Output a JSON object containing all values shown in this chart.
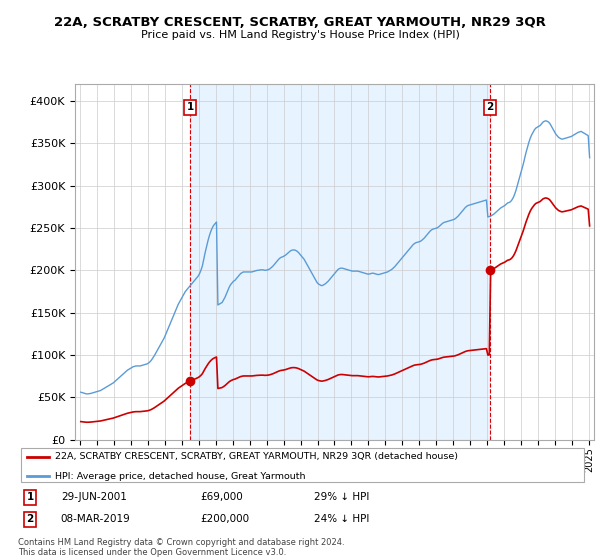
{
  "title": "22A, SCRATBY CRESCENT, SCRATBY, GREAT YARMOUTH, NR29 3QR",
  "subtitle": "Price paid vs. HM Land Registry's House Price Index (HPI)",
  "hpi_color": "#5b9bd5",
  "hpi_fill_color": "#ddeeff",
  "price_color": "#cc0000",
  "dashed_line_color": "#dd0000",
  "sale1_date_x": 2001.49,
  "sale1_price": 69000,
  "sale2_date_x": 2019.18,
  "sale2_price": 200000,
  "legend_line1": "22A, SCRATBY CRESCENT, SCRATBY, GREAT YARMOUTH, NR29 3QR (detached house)",
  "legend_line2": "HPI: Average price, detached house, Great Yarmouth",
  "footer": "Contains HM Land Registry data © Crown copyright and database right 2024.\nThis data is licensed under the Open Government Licence v3.0.",
  "ylim": [
    0,
    420000
  ],
  "yticks": [
    0,
    50000,
    100000,
    150000,
    200000,
    250000,
    300000,
    350000,
    400000
  ],
  "xlim": [
    1994.7,
    2025.3
  ],
  "xticks": [
    1995,
    1996,
    1997,
    1998,
    1999,
    2000,
    2001,
    2002,
    2003,
    2004,
    2005,
    2006,
    2007,
    2008,
    2009,
    2010,
    2011,
    2012,
    2013,
    2014,
    2015,
    2016,
    2017,
    2018,
    2019,
    2020,
    2021,
    2022,
    2023,
    2024,
    2025
  ],
  "hpi_data": {
    "1995-01": 56000,
    "1995-02": 55500,
    "1995-03": 55000,
    "1995-04": 54500,
    "1995-05": 54000,
    "1995-06": 54000,
    "1995-07": 54200,
    "1995-08": 54500,
    "1995-09": 55000,
    "1995-10": 55500,
    "1995-11": 56000,
    "1995-12": 56500,
    "1996-01": 57000,
    "1996-02": 57500,
    "1996-03": 58000,
    "1996-04": 59000,
    "1996-05": 60000,
    "1996-06": 61000,
    "1996-07": 62000,
    "1996-08": 63000,
    "1996-09": 64000,
    "1996-10": 65000,
    "1996-11": 66000,
    "1996-12": 67000,
    "1997-01": 68500,
    "1997-02": 70000,
    "1997-03": 71500,
    "1997-04": 73000,
    "1997-05": 74500,
    "1997-06": 76000,
    "1997-07": 77500,
    "1997-08": 79000,
    "1997-09": 80500,
    "1997-10": 82000,
    "1997-11": 83000,
    "1997-12": 84000,
    "1998-01": 85000,
    "1998-02": 86000,
    "1998-03": 86500,
    "1998-04": 87000,
    "1998-05": 87000,
    "1998-06": 87000,
    "1998-07": 87000,
    "1998-08": 87500,
    "1998-09": 88000,
    "1998-10": 88500,
    "1998-11": 89000,
    "1998-12": 89500,
    "1999-01": 90500,
    "1999-02": 92000,
    "1999-03": 94000,
    "1999-04": 96500,
    "1999-05": 99000,
    "1999-06": 102000,
    "1999-07": 105000,
    "1999-08": 108000,
    "1999-09": 111000,
    "1999-10": 114000,
    "1999-11": 117000,
    "1999-12": 120000,
    "2000-01": 124000,
    "2000-02": 128000,
    "2000-03": 132000,
    "2000-04": 136000,
    "2000-05": 140000,
    "2000-06": 144000,
    "2000-07": 148000,
    "2000-08": 152000,
    "2000-09": 156000,
    "2000-10": 160000,
    "2000-11": 163000,
    "2000-12": 166000,
    "2001-01": 169000,
    "2001-02": 172000,
    "2001-03": 175000,
    "2001-04": 177000,
    "2001-05": 179000,
    "2001-06": 181000,
    "2001-07": 183000,
    "2001-08": 185000,
    "2001-09": 187000,
    "2001-10": 189000,
    "2001-11": 191000,
    "2001-12": 193000,
    "2002-01": 196000,
    "2002-02": 200000,
    "2002-03": 205000,
    "2002-04": 213000,
    "2002-05": 221000,
    "2002-06": 228000,
    "2002-07": 235000,
    "2002-08": 241000,
    "2002-09": 246000,
    "2002-10": 250000,
    "2002-11": 253000,
    "2002-12": 255000,
    "2003-01": 257000,
    "2003-02": 159000,
    "2003-03": 160000,
    "2003-04": 161000,
    "2003-05": 162000,
    "2003-06": 165000,
    "2003-07": 168000,
    "2003-08": 172000,
    "2003-09": 176000,
    "2003-10": 180000,
    "2003-11": 183000,
    "2003-12": 185000,
    "2004-01": 187000,
    "2004-02": 188000,
    "2004-03": 190000,
    "2004-04": 192000,
    "2004-05": 194000,
    "2004-06": 196000,
    "2004-07": 197000,
    "2004-08": 198000,
    "2004-09": 198000,
    "2004-10": 198000,
    "2004-11": 198000,
    "2004-12": 198000,
    "2005-01": 198000,
    "2005-02": 198000,
    "2005-03": 198500,
    "2005-04": 199000,
    "2005-05": 199500,
    "2005-06": 200000,
    "2005-07": 200000,
    "2005-08": 200500,
    "2005-09": 200500,
    "2005-10": 200500,
    "2005-11": 200000,
    "2005-12": 200000,
    "2006-01": 200500,
    "2006-02": 201000,
    "2006-03": 202000,
    "2006-04": 203500,
    "2006-05": 205000,
    "2006-06": 207000,
    "2006-07": 209000,
    "2006-08": 211000,
    "2006-09": 213000,
    "2006-10": 214500,
    "2006-11": 215500,
    "2006-12": 216000,
    "2007-01": 217000,
    "2007-02": 218000,
    "2007-03": 219500,
    "2007-04": 221000,
    "2007-05": 222500,
    "2007-06": 223500,
    "2007-07": 224000,
    "2007-08": 224000,
    "2007-09": 223500,
    "2007-10": 222500,
    "2007-11": 221000,
    "2007-12": 219000,
    "2008-01": 217000,
    "2008-02": 215000,
    "2008-03": 213000,
    "2008-04": 210000,
    "2008-05": 207000,
    "2008-06": 204000,
    "2008-07": 201000,
    "2008-08": 198000,
    "2008-09": 195000,
    "2008-10": 192000,
    "2008-11": 189000,
    "2008-12": 186000,
    "2009-01": 184000,
    "2009-02": 183000,
    "2009-03": 182000,
    "2009-04": 182000,
    "2009-05": 183000,
    "2009-06": 184000,
    "2009-07": 185500,
    "2009-08": 187000,
    "2009-09": 189000,
    "2009-10": 191000,
    "2009-11": 193000,
    "2009-12": 195000,
    "2010-01": 197000,
    "2010-02": 199000,
    "2010-03": 201000,
    "2010-04": 202000,
    "2010-05": 202500,
    "2010-06": 202500,
    "2010-07": 202000,
    "2010-08": 201500,
    "2010-09": 201000,
    "2010-10": 200500,
    "2010-11": 200000,
    "2010-12": 199500,
    "2011-01": 199000,
    "2011-02": 199000,
    "2011-03": 199000,
    "2011-04": 199000,
    "2011-05": 199000,
    "2011-06": 198500,
    "2011-07": 198000,
    "2011-08": 197500,
    "2011-09": 197000,
    "2011-10": 196500,
    "2011-11": 196000,
    "2011-12": 195500,
    "2012-01": 195500,
    "2012-02": 196000,
    "2012-03": 196500,
    "2012-04": 196500,
    "2012-05": 196000,
    "2012-06": 195500,
    "2012-07": 195000,
    "2012-08": 195000,
    "2012-09": 195500,
    "2012-10": 196000,
    "2012-11": 196500,
    "2012-12": 197000,
    "2013-01": 197500,
    "2013-02": 198000,
    "2013-03": 199000,
    "2013-04": 200000,
    "2013-05": 201000,
    "2013-06": 202500,
    "2013-07": 204000,
    "2013-08": 206000,
    "2013-09": 208000,
    "2013-10": 210000,
    "2013-11": 212000,
    "2013-12": 214000,
    "2014-01": 216000,
    "2014-02": 218000,
    "2014-03": 220000,
    "2014-04": 222000,
    "2014-05": 224000,
    "2014-06": 226000,
    "2014-07": 228000,
    "2014-08": 230000,
    "2014-09": 231500,
    "2014-10": 232500,
    "2014-11": 233000,
    "2014-12": 233500,
    "2015-01": 234000,
    "2015-02": 235000,
    "2015-03": 236500,
    "2015-04": 238000,
    "2015-05": 240000,
    "2015-06": 242000,
    "2015-07": 244000,
    "2015-08": 246000,
    "2015-09": 247500,
    "2015-10": 248500,
    "2015-11": 249000,
    "2015-12": 249500,
    "2016-01": 250000,
    "2016-02": 251000,
    "2016-03": 252500,
    "2016-04": 254000,
    "2016-05": 255500,
    "2016-06": 256500,
    "2016-07": 257000,
    "2016-08": 257500,
    "2016-09": 258000,
    "2016-10": 258500,
    "2016-11": 259000,
    "2016-12": 259500,
    "2017-01": 260000,
    "2017-02": 261000,
    "2017-03": 262500,
    "2017-04": 264000,
    "2017-05": 266000,
    "2017-06": 268000,
    "2017-07": 270000,
    "2017-08": 272000,
    "2017-09": 274000,
    "2017-10": 275500,
    "2017-11": 276500,
    "2017-12": 277000,
    "2018-01": 277500,
    "2018-02": 278000,
    "2018-03": 278500,
    "2018-04": 279000,
    "2018-05": 279500,
    "2018-06": 280000,
    "2018-07": 280500,
    "2018-08": 281000,
    "2018-09": 281500,
    "2018-10": 282000,
    "2018-11": 282500,
    "2018-12": 283000,
    "2019-01": 263000,
    "2019-02": 263500,
    "2019-03": 264000,
    "2019-04": 265000,
    "2019-05": 266000,
    "2019-06": 267500,
    "2019-07": 269000,
    "2019-08": 270500,
    "2019-09": 272000,
    "2019-10": 273500,
    "2019-11": 274500,
    "2019-12": 275500,
    "2020-01": 276500,
    "2020-02": 278000,
    "2020-03": 279500,
    "2020-04": 280000,
    "2020-05": 281000,
    "2020-06": 283000,
    "2020-07": 286000,
    "2020-08": 290000,
    "2020-09": 295000,
    "2020-10": 301000,
    "2020-11": 307000,
    "2020-12": 313000,
    "2021-01": 319000,
    "2021-02": 325000,
    "2021-03": 332000,
    "2021-04": 339000,
    "2021-05": 345000,
    "2021-06": 351000,
    "2021-07": 356000,
    "2021-08": 360000,
    "2021-09": 363000,
    "2021-10": 366000,
    "2021-11": 368000,
    "2021-12": 369000,
    "2022-01": 370000,
    "2022-02": 371000,
    "2022-03": 373000,
    "2022-04": 375000,
    "2022-05": 376000,
    "2022-06": 376500,
    "2022-07": 376000,
    "2022-08": 375000,
    "2022-09": 373000,
    "2022-10": 370000,
    "2022-11": 367000,
    "2022-12": 364000,
    "2023-01": 361000,
    "2023-02": 359000,
    "2023-03": 357000,
    "2023-04": 356000,
    "2023-05": 355000,
    "2023-06": 355000,
    "2023-07": 355500,
    "2023-08": 356000,
    "2023-09": 356500,
    "2023-10": 357000,
    "2023-11": 357500,
    "2023-12": 358000,
    "2024-01": 359000,
    "2024-02": 360000,
    "2024-03": 361000,
    "2024-04": 362000,
    "2024-05": 363000,
    "2024-06": 363500,
    "2024-07": 364000,
    "2024-08": 363000,
    "2024-09": 362000,
    "2024-10": 361000,
    "2024-11": 360000,
    "2024-12": 359000,
    "2025-01": 333000
  }
}
